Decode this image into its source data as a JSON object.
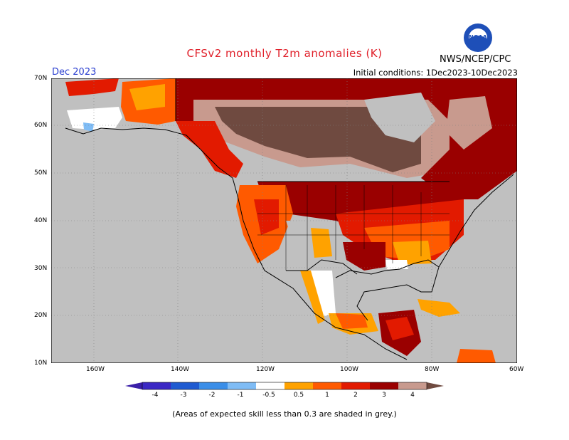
{
  "header": {
    "title": "CFSv2 monthly T2m anomalies (K)",
    "month": "Dec 2023",
    "initial_conditions": "Initial conditions: 1Dec2023-10Dec2023",
    "agency": "NWS/NCEP/CPC",
    "logo_text": "NOAA"
  },
  "axes": {
    "lat_labels": [
      "70N",
      "60N",
      "50N",
      "40N",
      "30N",
      "20N",
      "10N"
    ],
    "lon_labels": [
      "160W",
      "140W",
      "120W",
      "100W",
      "80W",
      "60W"
    ]
  },
  "legend": {
    "ticks": [
      "-4",
      "-3",
      "-2",
      "-1",
      "-0.5",
      "0.5",
      "1",
      "2",
      "3",
      "4"
    ],
    "colors": {
      "lt_-4": "#3a1fa8",
      "-4_-3": "#3b28c4",
      "-3_-2": "#1f5bd1",
      "-2_-1": "#3a8ee8",
      "-1_-0.5": "#7fbcf5",
      "-0.5_0.5": "#ffffff",
      "0.5_1": "#ffa200",
      "1_2": "#ff5a00",
      "2_3": "#e21a00",
      "3_4": "#9a0000",
      "4_plus_a": "#c89a8e",
      "4_plus_b": "#6f4a40"
    },
    "grey": "#c0c0c0"
  },
  "footer": {
    "note": "(Areas of expected skill less than 0.3 are shaded in grey.)"
  }
}
